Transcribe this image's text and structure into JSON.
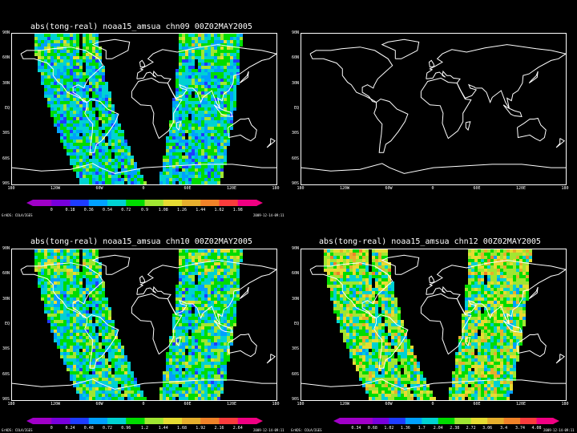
{
  "panels": [
    {
      "id": "p1",
      "title": "abs(tong-real) noaa15_amsua chn09 00Z02MAY2005",
      "has_data": true,
      "intensity": 0.45,
      "colorbar": [
        "0",
        "0.18",
        "0.36",
        "0.54",
        "0.72",
        "0.9",
        "1.08",
        "1.26",
        "1.44",
        "1.62",
        "1.98"
      ],
      "footer_left": "GrADS: COLA/IGES",
      "footer_right": "2009-12-14-09:11"
    },
    {
      "id": "p2",
      "title": "",
      "has_data": false,
      "intensity": 0,
      "colorbar": [],
      "footer_left": "",
      "footer_right": ""
    },
    {
      "id": "p3",
      "title": "abs(tong-real) noaa15_amsua chn10 00Z02MAY2005",
      "has_data": true,
      "intensity": 0.5,
      "colorbar": [
        "0",
        "0.24",
        "0.48",
        "0.72",
        "0.96",
        "1.2",
        "1.44",
        "1.68",
        "1.92",
        "2.16",
        "2.64"
      ],
      "footer_left": "GrADS: COLA/IGES",
      "footer_right": "2009-12-14-09:11"
    },
    {
      "id": "p4",
      "title": "abs(tong-real) noaa15_amsua chn12 00Z02MAY2005",
      "has_data": true,
      "intensity": 0.62,
      "colorbar": [
        "0.34",
        "0.68",
        "1.02",
        "1.36",
        "1.7",
        "2.04",
        "2.38",
        "2.72",
        "3.06",
        "3.4",
        "3.74",
        "4.08"
      ],
      "footer_left": "GrADS: COLA/IGES",
      "footer_right": "2009-12-14-09:11"
    }
  ],
  "lat_ticks": [
    "90N",
    "60N",
    "30N",
    "EQ",
    "30S",
    "60S",
    "90S"
  ],
  "lon_ticks": [
    "180",
    "120W",
    "60W",
    "0",
    "60E",
    "120E",
    "180"
  ],
  "palette": [
    "#a000c8",
    "#7800dc",
    "#1e3cff",
    "#00a0ff",
    "#00d2d2",
    "#00dc00",
    "#a0e632",
    "#e6dc32",
    "#e6af2d",
    "#f08228",
    "#fa3c3c",
    "#f00082"
  ]
}
